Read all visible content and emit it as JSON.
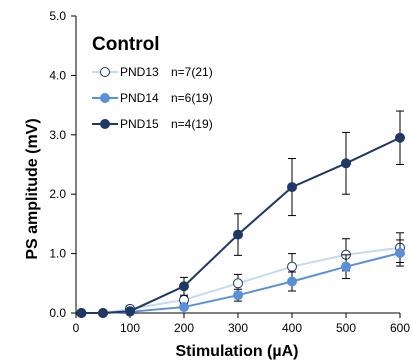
{
  "chart_data": {
    "type": "line",
    "title": "Control",
    "xlabel": "Stimulation (µA)",
    "ylabel": "PS amplitude (mV)",
    "xlim": [
      0,
      600
    ],
    "ylim": [
      0,
      5
    ],
    "xticks": [
      0,
      100,
      200,
      300,
      400,
      500,
      600
    ],
    "yticks": [
      "0.0",
      "1.0",
      "2.0",
      "3.0",
      "4.0",
      "5.0"
    ],
    "grid": false,
    "legend_position": "top-left",
    "x": [
      10,
      50,
      100,
      200,
      300,
      400,
      500,
      600
    ],
    "series": [
      {
        "name": "PND13",
        "label": "n=7(21)",
        "line_color": "#c5d9f1",
        "marker_fill": "#ffffff",
        "marker_stroke": "#1f3864",
        "values": [
          0.0,
          0.0,
          0.07,
          0.22,
          0.5,
          0.78,
          0.98,
          1.1
        ],
        "errors": [
          0.0,
          0.0,
          0.02,
          0.06,
          0.15,
          0.22,
          0.27,
          0.25
        ]
      },
      {
        "name": "PND14",
        "label": "n=6(19)",
        "line_color": "#5b8fd9",
        "marker_fill": "#5b8fd9",
        "marker_stroke": "#5b8fd9",
        "values": [
          0.0,
          0.0,
          0.02,
          0.1,
          0.3,
          0.53,
          0.78,
          1.01
        ],
        "errors": [
          0.0,
          0.0,
          0.01,
          0.04,
          0.1,
          0.16,
          0.2,
          0.22
        ]
      },
      {
        "name": "PND15",
        "label": "n=4(19)",
        "line_color": "#1f3864",
        "marker_fill": "#1f3864",
        "marker_stroke": "#1f3864",
        "values": [
          0.0,
          0.0,
          0.03,
          0.45,
          1.32,
          2.12,
          2.52,
          2.95
        ],
        "errors": [
          0.0,
          0.0,
          0.01,
          0.15,
          0.35,
          0.48,
          0.52,
          0.45
        ]
      }
    ]
  }
}
